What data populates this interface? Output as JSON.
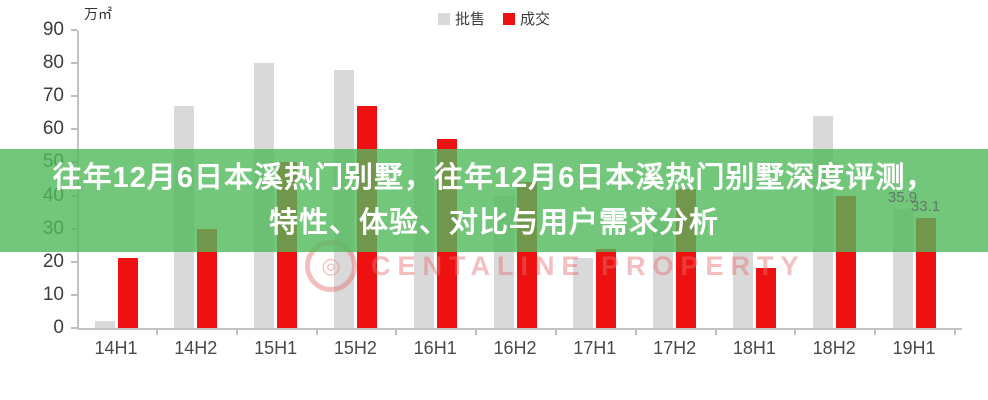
{
  "unit_label": "万㎡",
  "legend": {
    "items": [
      {
        "label": "批售",
        "color": "#d9d9d9"
      },
      {
        "label": "成交",
        "color": "#ee1111"
      }
    ]
  },
  "overlay_banner": {
    "line1": "往年12月6日本溪热门别墅，往年12月6日本溪热门别墅深度评测，",
    "line2": "特性、体验、对比与用户需求分析",
    "background_color": "#50b95a",
    "text_color": "#ffffff"
  },
  "watermark": {
    "logo": "centaline-logo",
    "text": "CENTALINE PROPERTY"
  },
  "chart_data": {
    "type": "bar",
    "title": "",
    "ylabel": "万㎡",
    "xlabel": "",
    "ylim": [
      0,
      90
    ],
    "ytick_step": 10,
    "yticks": [
      0,
      10,
      20,
      30,
      40,
      50,
      60,
      70,
      80,
      90
    ],
    "grid": false,
    "legend_position": "top-center",
    "categories": [
      "14H1",
      "14H2",
      "15H1",
      "15H2",
      "16H1",
      "16H2",
      "17H1",
      "17H2",
      "18H1",
      "18H2",
      "19H1"
    ],
    "series": [
      {
        "name": "批售",
        "color": "#d9d9d9",
        "values": [
          2,
          67,
          80,
          78,
          54,
          40,
          21,
          36,
          23,
          64,
          35.9
        ]
      },
      {
        "name": "成交",
        "color": "#ee1111",
        "values": [
          21,
          30,
          50,
          67,
          57,
          44,
          24,
          42,
          18,
          40,
          33.1
        ]
      }
    ],
    "data_labels": [
      {
        "category": "19H1",
        "series": "批售",
        "text": "35.9"
      },
      {
        "category": "19H1",
        "series": "成交",
        "text": "33.1"
      }
    ],
    "note": "values for bars whose tops are hidden behind the green banner are estimated from the semi-transparent overlay"
  }
}
